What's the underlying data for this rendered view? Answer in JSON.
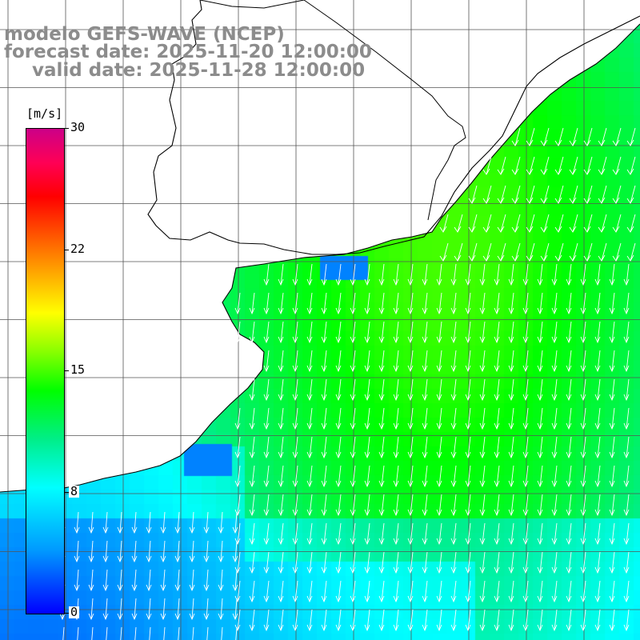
{
  "title": {
    "line1": "modelo GEFS-WAVE (NCEP)",
    "line2": "forecast date: 2025-11-20 12:00:00",
    "line3": "valid date: 2025-11-28 12:00:00"
  },
  "legend": {
    "unit": "[m/s]",
    "min": 0,
    "max": 30,
    "ticks": [
      "30",
      "22",
      "15",
      "8",
      "0"
    ],
    "colors": [
      "#0000ff",
      "#00ffff",
      "#00ff00",
      "#ffff00",
      "#ff0000",
      "#cc0088"
    ]
  },
  "map": {
    "variable": "wind speed and direction",
    "coastline_color": "#000000",
    "grid_color": "#555555"
  }
}
